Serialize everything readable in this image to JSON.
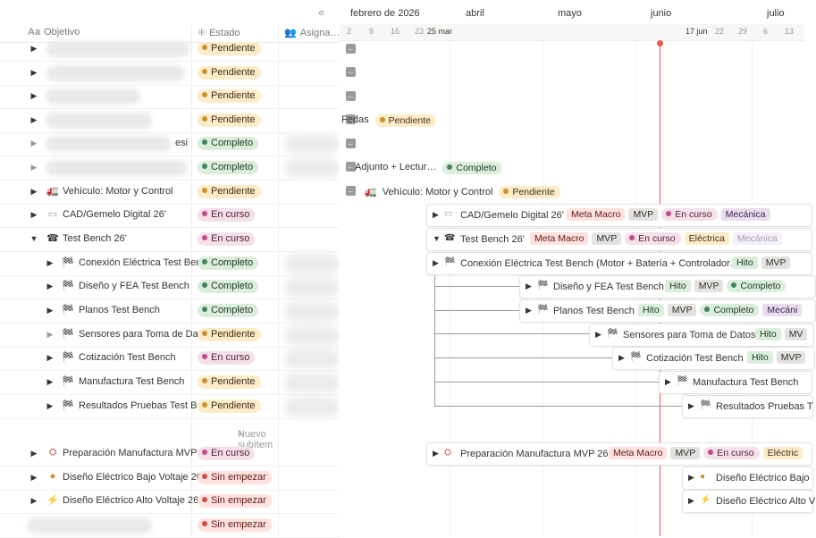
{
  "table": {
    "headers": {
      "objetivo": "Objetivo",
      "estado": "Estado",
      "asignado": "Asigna…"
    },
    "rows": [
      {
        "name": "",
        "status": "Pendiente",
        "kind": "pend"
      },
      {
        "name": "",
        "status": "Pendiente",
        "kind": "pend"
      },
      {
        "name": "",
        "status": "Pendiente",
        "kind": "pend"
      },
      {
        "name": "",
        "status": "Pendiente",
        "kind": "pend"
      },
      {
        "name": "esi",
        "status": "Completo",
        "kind": "comp"
      },
      {
        "name": "",
        "status": "Completo",
        "kind": "comp"
      },
      {
        "name": "Vehículo: Motor y Control",
        "status": "Pendiente",
        "kind": "pend"
      },
      {
        "name": "CAD/Gemelo Digital 26'",
        "status": "En curso",
        "kind": "curso"
      },
      {
        "name": "Test Bench 26'",
        "status": "En curso",
        "kind": "curso"
      },
      {
        "name": "Conexión Eléctrica Test Ben",
        "status": "Completo",
        "kind": "comp"
      },
      {
        "name": "Diseño y FEA Test Bench",
        "status": "Completo",
        "kind": "comp"
      },
      {
        "name": "Planos Test Bench",
        "status": "Completo",
        "kind": "comp"
      },
      {
        "name": "Sensores para Toma de Da",
        "status": "Pendiente",
        "kind": "pend"
      },
      {
        "name": "Cotización Test Bench",
        "status": "En curso",
        "kind": "curso"
      },
      {
        "name": "Manufactura Test Bench",
        "status": "Pendiente",
        "kind": "pend"
      },
      {
        "name": "Resultados Pruebas Test Be",
        "status": "Pendiente",
        "kind": "pend"
      },
      {
        "name": "Preparación Manufactura MVP",
        "status": "En curso",
        "kind": "curso"
      },
      {
        "name": "Diseño Eléctrico Bajo Voltaje 26",
        "status": "Sin empezar",
        "kind": "sin"
      },
      {
        "name": "Diseño Eléctrico Alto Voltaje 26",
        "status": "Sin empezar",
        "kind": "sin"
      },
      {
        "name": "",
        "status": "Sin empezar",
        "kind": "sin"
      }
    ],
    "new_subitem": "Nuevo subítem"
  },
  "timeline": {
    "months": [
      "febrero de 2026",
      "abril",
      "mayo",
      "junio",
      "julio"
    ],
    "days": [
      "2",
      "9",
      "16",
      "23",
      "25 mar",
      "17 jun",
      "22",
      "29",
      "6",
      "13"
    ],
    "labels": {
      "fedas": "Fedas",
      "adjunto": "Adjunto + Lectur…",
      "vehiculo": "Vehículo: Motor y Control",
      "cad": "CAD/Gemelo Digital 26'",
      "testbench": "Test Bench 26'",
      "conexion": "Conexión Eléctrica Test Bench (Motor + Batería + Controlador…",
      "diseno_fea": "Diseño y FEA Test Bench",
      "planos": "Planos Test Bench",
      "sensores": "Sensores para Toma de Datos",
      "cotizacion": "Cotización Test Bench",
      "manufactura": "Manufactura Test Bench",
      "resultados": "Resultados Pruebas T",
      "prep": "Preparación Manufactura MVP 26'",
      "bajo": "Diseño Eléctrico Bajo",
      "alto": "Diseño Eléctrico Alto V"
    },
    "tags": {
      "meta_macro": "Meta Macro",
      "mvp": "MVP",
      "mvp_short": "MV",
      "hito": "Hito",
      "mecanica": "Mecánica",
      "mecanica_short": "Mecáni",
      "electrica": "Eléctrica",
      "electrica_short": "Eléctric"
    },
    "status": {
      "pendiente": "Pendiente",
      "completo": "Completo",
      "en_curso": "En curso",
      "sin_empezar": "Sin empezar"
    }
  },
  "colors": {
    "today_line": "#eb5757",
    "pendiente_bg": "#fdecc8",
    "completo_bg": "#dbeddb",
    "en_curso_bg": "#f5e0e9",
    "sin_empezar_bg": "#ffe2dd"
  },
  "icons": {
    "toggle_collapsed": "▶",
    "toggle_expanded": "▼",
    "collapse_panel": "«",
    "back_arrow": "←",
    "add": "+"
  }
}
